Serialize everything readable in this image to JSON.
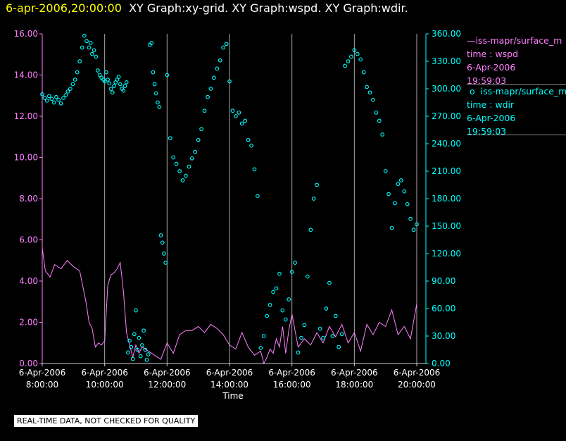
{
  "header": {
    "timestamp": "6-apr-2006,20:00:00",
    "graphs": "XY Graph:xy-grid.  XY Graph:wspd.  XY Graph:wdir."
  },
  "disclaimer": "REAL-TIME DATA, NOT CHECKED FOR QUALITY",
  "colors": {
    "wspd": "#ff80ff",
    "wdir": "#00ffff",
    "axis_left": "#ff80ff",
    "axis_right": "#00ffff",
    "grid": "#aaaaaa",
    "background": "#000000"
  },
  "legend": [
    {
      "symbol": "—",
      "source": "iss-mapr/surface_m",
      "time_label": "time : wspd",
      "date": "6-Apr-2006",
      "time": "19:59:03"
    },
    {
      "symbol": "o",
      "source": "iss-mapr/surface_m",
      "time_label": "time : wdir",
      "date": "6-Apr-2006",
      "time": "19:59:03"
    }
  ],
  "chart_data": {
    "type": "line+scatter",
    "xlabel": "Time",
    "x_unit": "hours",
    "xlim": [
      8.0,
      20.0
    ],
    "x_ticks": [
      {
        "value": 8.0,
        "date": "6-Apr-2006",
        "time": "8:00:00"
      },
      {
        "value": 10.0,
        "date": "6-Apr-2006",
        "time": "10:00:00"
      },
      {
        "value": 12.0,
        "date": "6-Apr-2006",
        "time": "12:00:00"
      },
      {
        "value": 14.0,
        "date": "6-Apr-2006",
        "time": "14:00:00"
      },
      {
        "value": 16.0,
        "date": "6-Apr-2006",
        "time": "16:00:00"
      },
      {
        "value": 18.0,
        "date": "6-Apr-2006",
        "time": "18:00:00"
      },
      {
        "value": 20.0,
        "date": "6-Apr-2006",
        "time": "20:00:00"
      }
    ],
    "y_left": {
      "ylim": [
        0,
        16
      ],
      "ticks": [
        "0.00",
        "2.00",
        "4.00",
        "6.00",
        "8.00",
        "10.00",
        "12.00",
        "14.00",
        "16.00"
      ]
    },
    "y_right": {
      "ylim": [
        0,
        360
      ],
      "ticks": [
        "0.00",
        "30.00",
        "60.00",
        "90.00",
        "120.00",
        "150.00",
        "180.00",
        "210.00",
        "240.00",
        "270.00",
        "300.00",
        "330.00",
        "360.00"
      ]
    },
    "grid": "vertical",
    "series": [
      {
        "name": "wspd",
        "axis": "left",
        "style": "line",
        "x": [
          8.0,
          8.1,
          8.25,
          8.4,
          8.6,
          8.8,
          9.0,
          9.2,
          9.4,
          9.5,
          9.6,
          9.7,
          9.8,
          9.9,
          10.0,
          10.1,
          10.2,
          10.3,
          10.4,
          10.5,
          10.6,
          10.7,
          10.8,
          10.9,
          11.0,
          11.1,
          11.2,
          11.4,
          11.6,
          11.8,
          12.0,
          12.2,
          12.4,
          12.6,
          12.8,
          13.0,
          13.2,
          13.4,
          13.6,
          13.8,
          14.0,
          14.2,
          14.4,
          14.6,
          14.8,
          15.0,
          15.1,
          15.2,
          15.3,
          15.4,
          15.5,
          15.6,
          15.7,
          15.8,
          15.9,
          16.0,
          16.2,
          16.4,
          16.6,
          16.8,
          17.0,
          17.2,
          17.4,
          17.6,
          17.8,
          18.0,
          18.2,
          18.4,
          18.6,
          18.8,
          19.0,
          19.2,
          19.4,
          19.6,
          19.8,
          20.0
        ],
        "y": [
          5.6,
          4.5,
          4.2,
          4.8,
          4.6,
          5.0,
          4.7,
          4.5,
          3.0,
          2.0,
          1.7,
          0.8,
          1.0,
          0.9,
          1.1,
          3.8,
          4.3,
          4.4,
          4.6,
          4.9,
          3.5,
          1.5,
          0.9,
          0.3,
          0.9,
          0.5,
          0.8,
          0.6,
          0.4,
          0.2,
          1.0,
          0.5,
          1.4,
          1.6,
          1.6,
          1.8,
          1.5,
          1.9,
          1.7,
          1.4,
          0.9,
          0.7,
          1.5,
          0.8,
          0.4,
          0.6,
          0.0,
          0.3,
          0.7,
          0.5,
          1.2,
          0.8,
          1.8,
          0.5,
          1.6,
          2.4,
          0.8,
          1.2,
          0.9,
          1.5,
          1.0,
          1.8,
          1.3,
          1.9,
          1.0,
          1.5,
          0.6,
          1.9,
          1.4,
          2.0,
          1.8,
          2.6,
          1.4,
          1.8,
          1.2,
          2.9
        ]
      },
      {
        "name": "wdir",
        "axis": "right",
        "style": "scatter",
        "x": [
          8.0,
          8.08,
          8.15,
          8.22,
          8.3,
          8.38,
          8.45,
          8.52,
          8.6,
          8.68,
          8.75,
          8.82,
          8.9,
          8.98,
          9.05,
          9.12,
          9.2,
          9.28,
          9.35,
          9.42,
          9.5,
          9.55,
          9.6,
          9.66,
          9.72,
          9.78,
          9.84,
          9.9,
          9.96,
          10.0,
          10.05,
          10.1,
          10.15,
          10.2,
          10.25,
          10.3,
          10.35,
          10.4,
          10.45,
          10.5,
          10.55,
          10.6,
          10.65,
          10.7,
          10.75,
          10.8,
          10.85,
          10.9,
          10.95,
          11.0,
          11.05,
          11.1,
          11.15,
          11.2,
          11.25,
          11.3,
          11.35,
          11.4,
          11.45,
          11.5,
          11.55,
          11.6,
          11.65,
          11.7,
          11.75,
          11.8,
          11.85,
          11.9,
          11.95,
          12.0,
          12.1,
          12.2,
          12.3,
          12.4,
          12.5,
          12.6,
          12.7,
          12.8,
          12.9,
          13.0,
          13.1,
          13.2,
          13.3,
          13.4,
          13.5,
          13.6,
          13.7,
          13.8,
          13.9,
          14.0,
          14.1,
          14.2,
          14.3,
          14.4,
          14.5,
          14.6,
          14.7,
          14.8,
          14.9,
          15.0,
          15.1,
          15.2,
          15.3,
          15.4,
          15.5,
          15.6,
          15.7,
          15.8,
          15.9,
          16.0,
          16.1,
          16.2,
          16.3,
          16.4,
          16.5,
          16.6,
          16.7,
          16.8,
          16.9,
          17.0,
          17.1,
          17.2,
          17.3,
          17.4,
          17.5,
          17.6,
          17.7,
          17.8,
          17.9,
          18.0,
          18.1,
          18.2,
          18.3,
          18.4,
          18.5,
          18.6,
          18.7,
          18.8,
          18.9,
          19.0,
          19.1,
          19.2,
          19.3,
          19.4,
          19.5,
          19.6,
          19.7,
          19.8,
          19.9,
          20.0
        ],
        "y": [
          294,
          290,
          287,
          292,
          289,
          285,
          291,
          288,
          284,
          290,
          293,
          297,
          300,
          305,
          310,
          318,
          330,
          345,
          358,
          352,
          345,
          350,
          338,
          342,
          335,
          320,
          315,
          312,
          310,
          308,
          318,
          310,
          306,
          300,
          296,
          303,
          307,
          310,
          313,
          305,
          300,
          298,
          303,
          307,
          12,
          25,
          18,
          5,
          32,
          58,
          15,
          28,
          8,
          20,
          36,
          15,
          4,
          10,
          348,
          350,
          318,
          305,
          295,
          285,
          280,
          140,
          132,
          120,
          110,
          315,
          246,
          225,
          218,
          210,
          200,
          205,
          215,
          224,
          231,
          244,
          256,
          276,
          291,
          300,
          312,
          322,
          331,
          345,
          349,
          308,
          276,
          270,
          274,
          262,
          265,
          244,
          238,
          212,
          183,
          17,
          30,
          52,
          64,
          78,
          82,
          98,
          58,
          48,
          70,
          100,
          110,
          12,
          28,
          42,
          95,
          146,
          180,
          195,
          38,
          28,
          60,
          88,
          30,
          52,
          18,
          32,
          325,
          330,
          335,
          342,
          338,
          332,
          318,
          302,
          296,
          288,
          274,
          265,
          250,
          210,
          185,
          148,
          175,
          196,
          200,
          188,
          174,
          158,
          146,
          152
        ]
      }
    ]
  }
}
